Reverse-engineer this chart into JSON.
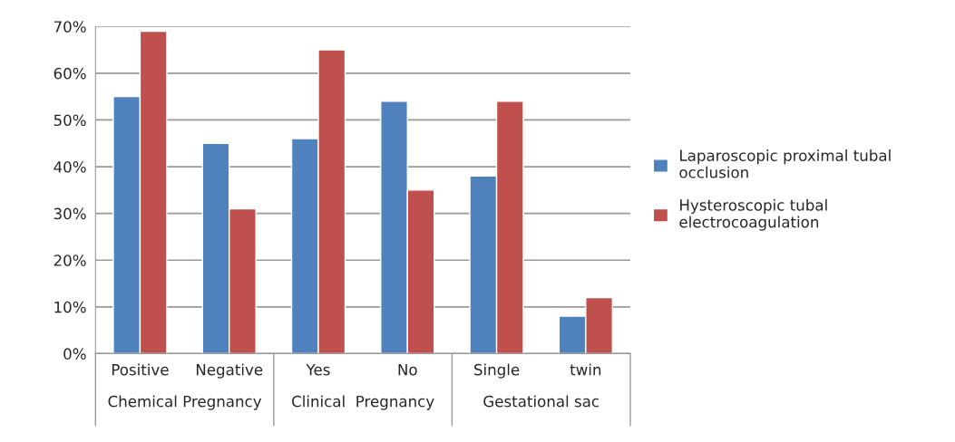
{
  "chart_data": {
    "type": "bar",
    "categories": [
      "Positive",
      "Negative",
      "Yes",
      "No",
      "Single",
      "twin"
    ],
    "series": [
      {
        "name": "Laparoscopic proximal tubal occlusion",
        "color": "#4f81bd",
        "values": [
          55,
          45,
          46,
          54,
          38,
          8
        ]
      },
      {
        "name": "Hysteroscopic tubal electrocoagulation",
        "color": "#c0504d",
        "values": [
          69,
          31,
          65,
          35,
          54,
          12
        ]
      }
    ],
    "annotations": [
      "Chemical Pregnancy",
      "Clinical  Pregnancy",
      "Gestational sac"
    ],
    "ylim": [
      0,
      70
    ],
    "yticks": [
      {
        "value": 0,
        "label": "0%"
      },
      {
        "value": 10,
        "label": "10%"
      },
      {
        "value": 20,
        "label": "20%"
      },
      {
        "value": 30,
        "label": "30%"
      },
      {
        "value": 40,
        "label": "40%"
      },
      {
        "value": 50,
        "label": "50%"
      },
      {
        "value": 60,
        "label": "60%"
      },
      {
        "value": 70,
        "label": "70%"
      }
    ],
    "grid": "y",
    "legend": "right"
  }
}
